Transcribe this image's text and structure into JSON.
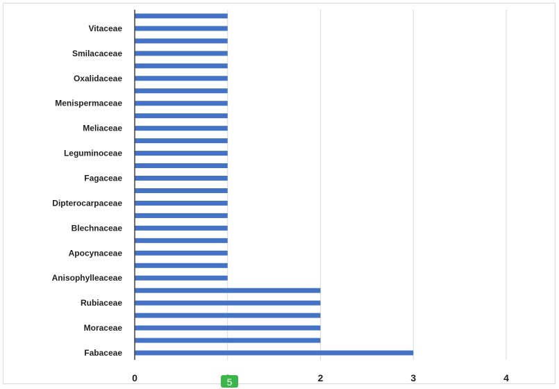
{
  "chart_data": {
    "type": "bar",
    "orientation": "horizontal",
    "title": "",
    "xlabel": "",
    "ylabel": "",
    "xlim": [
      0,
      4
    ],
    "x_ticks": [
      "0",
      "1",
      "2",
      "3",
      "4"
    ],
    "grid": "vertical",
    "legend": "none",
    "bar_color": "#4472c4",
    "bars_bottom_to_top": [
      3,
      2,
      2,
      2,
      2,
      2,
      1,
      1,
      1,
      1,
      1,
      1,
      1,
      1,
      1,
      1,
      1,
      1,
      1,
      1,
      1,
      1,
      1,
      1,
      1,
      1,
      1,
      1
    ],
    "category_labels_bottom_to_top": [
      "Fabaceae",
      "Moraceae",
      "Rubiaceae",
      "Anisophylleaceae",
      "Apocynaceae",
      "Blechnaceae",
      "Dipterocarpaceae",
      "Fagaceae",
      "Leguminoceae",
      "Meliaceae",
      "Menispermaceae",
      "Oxalidaceae",
      "Smilacaceae",
      "Vitaceae"
    ]
  },
  "badge": {
    "text": "5",
    "color": "#3cb54a"
  }
}
